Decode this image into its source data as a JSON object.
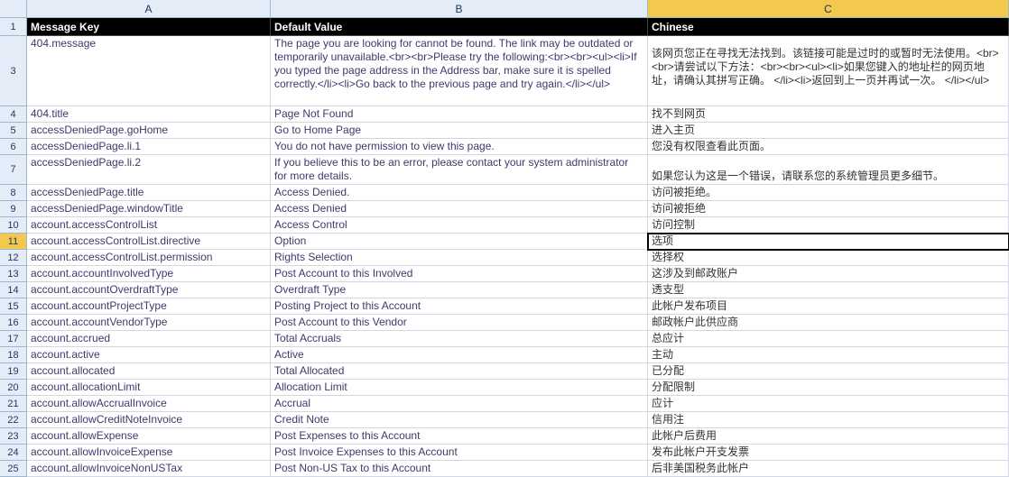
{
  "columns": {
    "A": "A",
    "B": "B",
    "C": "C"
  },
  "headers": {
    "A": "Message Key",
    "B": "Default Value",
    "C": "Chinese"
  },
  "selected_cell_coord": {
    "row": 11,
    "col": "C"
  },
  "rows": [
    {
      "n": 3,
      "tall": 78,
      "A": "404.message",
      "B": "The page you are looking for cannot be found. The link may be outdated or temporarily unavailable.<br><br>Please try the following:<br><br><ul><li>If you typed the page address in the Address bar, make sure it is spelled correctly.</li><li>Go back to the previous page and try again.</li></ul>",
      "C": "该网页您正在寻找无法找到。该链接可能是过时的或暂时无法使用。<br><br>请尝试以下方法：<br><br><ul><li>如果您键入的地址栏的网页地址，请确认其拼写正确。 </li><li>返回到上一页并再试一次。 </li></ul>"
    },
    {
      "n": 4,
      "A": "404.title",
      "B": "Page Not Found",
      "C": "找不到网页"
    },
    {
      "n": 5,
      "A": "accessDeniedPage.goHome",
      "B": "Go to Home Page",
      "C": "进入主页"
    },
    {
      "n": 6,
      "A": "accessDeniedPage.li.1",
      "B": "You do not have permission to view this page.",
      "C": "您没有权限查看此页面。"
    },
    {
      "n": 7,
      "tall": 33,
      "A": "accessDeniedPage.li.2",
      "B": "If you believe this to be an error, please contact your system administrator for more details.",
      "C": "如果您认为这是一个错误，请联系您的系统管理员更多细节。"
    },
    {
      "n": 8,
      "A": "accessDeniedPage.title",
      "B": "Access Denied.",
      "C": "访问被拒绝。"
    },
    {
      "n": 9,
      "A": "accessDeniedPage.windowTitle",
      "B": "Access Denied",
      "C": "访问被拒绝"
    },
    {
      "n": 10,
      "A": "account.accessControlList",
      "B": "Access Control",
      "C": "访问控制"
    },
    {
      "n": 11,
      "A": "account.accessControlList.directive",
      "B": "Option",
      "C": "选项"
    },
    {
      "n": 12,
      "A": "account.accessControlList.permission",
      "B": "Rights Selection",
      "C": "选择权"
    },
    {
      "n": 13,
      "A": "account.accountInvolvedType",
      "B": "Post Account to this Involved",
      "C": "这涉及到邮政账户"
    },
    {
      "n": 14,
      "A": "account.accountOverdraftType",
      "B": "Overdraft Type",
      "C": "透支型"
    },
    {
      "n": 15,
      "A": "account.accountProjectType",
      "B": "Posting Project to this Account",
      "C": "此帐户发布项目"
    },
    {
      "n": 16,
      "A": "account.accountVendorType",
      "B": "Post Account to this Vendor",
      "C": "邮政帐户此供应商"
    },
    {
      "n": 17,
      "A": "account.accrued",
      "B": "Total Accruals",
      "C": "总应计"
    },
    {
      "n": 18,
      "A": "account.active",
      "B": "Active",
      "C": "主动"
    },
    {
      "n": 19,
      "A": "account.allocated",
      "B": "Total Allocated",
      "C": "已分配"
    },
    {
      "n": 20,
      "A": "account.allocationLimit",
      "B": "Allocation Limit",
      "C": "分配限制"
    },
    {
      "n": 21,
      "A": "account.allowAccrualInvoice",
      "B": "Accrual",
      "C": "应计"
    },
    {
      "n": 22,
      "A": "account.allowCreditNoteInvoice",
      "B": "Credit Note",
      "C": "信用注"
    },
    {
      "n": 23,
      "A": "account.allowExpense",
      "B": "Post Expenses to this Account",
      "C": "此帐户后费用"
    },
    {
      "n": 24,
      "A": "account.allowInvoiceExpense",
      "B": "Post Invoice Expenses to this Account",
      "C": "发布此帐户开支发票"
    },
    {
      "n": 25,
      "A": "account.allowInvoiceNonUSTax",
      "B": "Post Non-US Tax to this Account",
      "C": "后非美国税务此帐户"
    }
  ]
}
